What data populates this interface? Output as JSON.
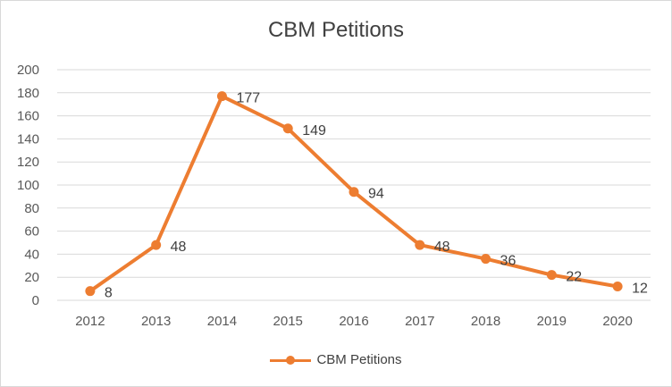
{
  "chart_data": {
    "type": "line",
    "title": "CBM Petitions",
    "categories": [
      "2012",
      "2013",
      "2014",
      "2015",
      "2016",
      "2017",
      "2018",
      "2019",
      "2020"
    ],
    "series": [
      {
        "name": "CBM Petitions",
        "values": [
          8,
          48,
          177,
          149,
          94,
          48,
          36,
          22,
          12
        ]
      }
    ],
    "ylim": [
      0,
      200
    ],
    "yticks": [
      0,
      20,
      40,
      60,
      80,
      100,
      120,
      140,
      160,
      180,
      200
    ],
    "grid": true,
    "legend": "bottom",
    "data_labels": true,
    "color": "#ED7D31"
  }
}
